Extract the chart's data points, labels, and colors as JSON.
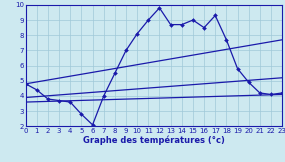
{
  "title": "Graphe des températures (°c)",
  "background_color": "#cde9f0",
  "grid_color": "#a0c8d8",
  "line_color": "#1a1aaa",
  "xlim": [
    0,
    23
  ],
  "ylim": [
    2,
    10
  ],
  "xticks": [
    0,
    1,
    2,
    3,
    4,
    5,
    6,
    7,
    8,
    9,
    10,
    11,
    12,
    13,
    14,
    15,
    16,
    17,
    18,
    19,
    20,
    21,
    22,
    23
  ],
  "yticks": [
    2,
    3,
    4,
    5,
    6,
    7,
    8,
    9,
    10
  ],
  "main_x": [
    0,
    1,
    2,
    3,
    4,
    5,
    6,
    7,
    8,
    9,
    10,
    11,
    12,
    13,
    14,
    15,
    16,
    17,
    18,
    19,
    20,
    21,
    22,
    23
  ],
  "main_y": [
    4.8,
    4.4,
    3.8,
    3.7,
    3.6,
    2.8,
    2.1,
    4.0,
    5.5,
    7.0,
    8.1,
    9.0,
    9.8,
    8.7,
    8.7,
    9.0,
    8.5,
    9.3,
    7.7,
    5.8,
    4.9,
    4.2,
    4.1,
    4.2
  ],
  "trend_lines": [
    {
      "x": [
        0,
        23
      ],
      "y": [
        4.8,
        7.7
      ]
    },
    {
      "x": [
        0,
        23
      ],
      "y": [
        3.9,
        5.2
      ]
    },
    {
      "x": [
        0,
        23
      ],
      "y": [
        3.6,
        4.1
      ]
    }
  ],
  "xlabel_fontsize": 6,
  "tick_fontsize": 5,
  "linewidth": 0.9,
  "markersize": 2.0
}
